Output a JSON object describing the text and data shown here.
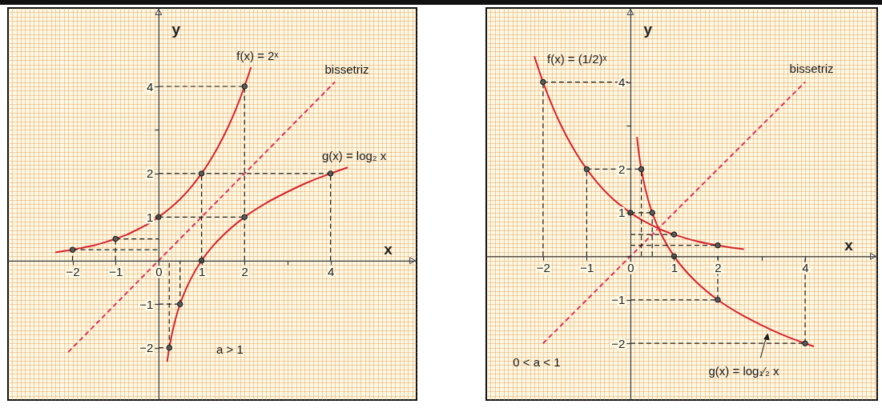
{
  "chart_data": [
    {
      "type": "line",
      "xlabel": "x",
      "ylabel": "y",
      "xlim": [
        -3.5,
        6.0
      ],
      "ylim": [
        -3.2,
        5.8
      ],
      "grid": true,
      "xticks": [
        {
          "value": -3.4,
          "label": null
        },
        {
          "value": -3.3,
          "label": null
        },
        {
          "value": -3.2,
          "label": null
        },
        {
          "value": -3.1,
          "label": null
        },
        {
          "value": -3,
          "label": null
        },
        {
          "value": -2.9,
          "label": null
        },
        {
          "value": -2.8,
          "label": null
        },
        {
          "value": -2.7,
          "label": null
        },
        {
          "value": -2.6,
          "label": null
        },
        {
          "value": -2.5,
          "label": null
        },
        {
          "value": -2.4,
          "label": null
        },
        {
          "value": -2.3,
          "label": null
        },
        {
          "value": -2.2,
          "label": null
        },
        {
          "value": -2.1,
          "label": null
        },
        -2,
        {
          "value": -1.9,
          "label": null
        },
        {
          "value": -1.8,
          "label": null
        },
        {
          "value": -1.7,
          "label": null
        },
        {
          "value": -1.6,
          "label": null
        },
        {
          "value": -1.5,
          "label": null
        },
        {
          "value": -1.4,
          "label": null
        },
        {
          "value": -1.3,
          "label": null
        },
        {
          "value": -1.2,
          "label": null
        },
        {
          "value": -1.1,
          "label": null
        },
        -1,
        {
          "value": -0.9,
          "label": null
        },
        {
          "value": -0.8,
          "label": null
        },
        {
          "value": -0.7,
          "label": null
        },
        {
          "value": -0.6,
          "label": null
        },
        {
          "value": -0.5,
          "label": null
        },
        {
          "value": -0.4,
          "label": null
        },
        {
          "value": -0.3,
          "label": null
        },
        {
          "value": -0.2,
          "label": null
        },
        {
          "value": -0.1,
          "label": null
        },
        0,
        {
          "value": 0.1,
          "label": null
        },
        {
          "value": 0.2,
          "label": null
        },
        {
          "value": 0.3,
          "label": null
        },
        {
          "value": 0.4,
          "label": null
        },
        {
          "value": 0.5,
          "label": null
        },
        {
          "value": 0.6,
          "label": null
        },
        {
          "value": 0.7,
          "label": null
        },
        {
          "value": 0.8,
          "label": null
        },
        {
          "value": 0.9,
          "label": null
        },
        1,
        {
          "value": 1.1,
          "label": null
        },
        {
          "value": 1.2,
          "label": null
        },
        {
          "value": 1.3,
          "label": null
        },
        {
          "value": 1.4,
          "label": null
        },
        {
          "value": 1.5,
          "label": null
        },
        {
          "value": 1.6,
          "label": null
        },
        {
          "value": 1.7,
          "label": null
        },
        {
          "value": 1.8,
          "label": null
        },
        {
          "value": 1.9,
          "label": null
        },
        2,
        {
          "value": 2.1,
          "label": null
        },
        {
          "value": 2.2,
          "label": null
        },
        {
          "value": 2.3,
          "label": null
        },
        {
          "value": 2.4,
          "label": null
        },
        {
          "value": 2.5,
          "label": null
        },
        {
          "value": 2.6,
          "label": null
        },
        {
          "value": 2.7,
          "label": null
        },
        {
          "value": 2.8,
          "label": null
        },
        {
          "value": 2.9,
          "label": null
        },
        {
          "value": 3,
          "label": null
        },
        {
          "value": 3.1,
          "label": null
        },
        {
          "value": 3.2,
          "label": null
        },
        {
          "value": 3.3,
          "label": null
        },
        {
          "value": 3.4,
          "label": null
        },
        {
          "value": 3.5,
          "label": null
        },
        {
          "value": 3.6,
          "label": null
        },
        {
          "value": 3.7,
          "label": null
        },
        {
          "value": 3.8,
          "label": null
        },
        {
          "value": 3.9,
          "label": null
        },
        4,
        {
          "value": 4.1,
          "label": null
        },
        {
          "value": 4.2,
          "label": null
        },
        {
          "value": 4.3,
          "label": null
        },
        {
          "value": 4.4,
          "label": null
        },
        {
          "value": 4.5,
          "label": null
        },
        {
          "value": 4.6,
          "label": null
        },
        {
          "value": 4.7,
          "label": null
        },
        {
          "value": 4.8,
          "label": null
        },
        {
          "value": 4.9,
          "label": null
        },
        {
          "value": 5,
          "label": null
        },
        {
          "value": 5.1,
          "label": null
        },
        {
          "value": 5.2,
          "label": null
        },
        {
          "value": 5.3,
          "label": null
        },
        {
          "value": 5.4,
          "label": null
        },
        {
          "value": 5.5,
          "label": null
        },
        {
          "value": 5.6,
          "label": null
        },
        {
          "value": 5.7,
          "label": null
        },
        {
          "value": 5.8,
          "label": null
        },
        {
          "value": 5.9,
          "label": null
        }
      ],
      "yticks": [
        {
          "value": -3.1,
          "label": null
        },
        {
          "value": -3,
          "label": null
        },
        {
          "value": -2.9,
          "label": null
        },
        {
          "value": -2.8,
          "label": null
        },
        {
          "value": -2.7,
          "label": null
        },
        {
          "value": -2.6,
          "label": null
        },
        {
          "value": -2.5,
          "label": null
        },
        {
          "value": -2.4,
          "label": null
        },
        {
          "value": -2.3,
          "label": null
        },
        {
          "value": -2.2,
          "label": null
        },
        {
          "value": -2.1,
          "label": null
        },
        -2,
        {
          "value": -1.9,
          "label": null
        },
        {
          "value": -1.8,
          "label": null
        },
        {
          "value": -1.7,
          "label": null
        },
        {
          "value": -1.6,
          "label": null
        },
        {
          "value": -1.5,
          "label": null
        },
        {
          "value": -1.4,
          "label": null
        },
        {
          "value": -1.3,
          "label": null
        },
        {
          "value": -1.2,
          "label": null
        },
        {
          "value": -1.1,
          "label": null
        },
        -1,
        {
          "value": -0.9,
          "label": null
        },
        {
          "value": -0.8,
          "label": null
        },
        {
          "value": -0.7,
          "label": null
        },
        {
          "value": -0.6,
          "label": null
        },
        {
          "value": -0.5,
          "label": null
        },
        {
          "value": -0.4,
          "label": null
        },
        {
          "value": -0.3,
          "label": null
        },
        {
          "value": -0.2,
          "label": null
        },
        {
          "value": -0.1,
          "label": null
        },
        {
          "value": 0,
          "label": null
        },
        {
          "value": 0.1,
          "label": null
        },
        {
          "value": 0.2,
          "label": null
        },
        {
          "value": 0.3,
          "label": null
        },
        {
          "value": 0.4,
          "label": null
        },
        {
          "value": 0.5,
          "label": null
        },
        {
          "value": 0.6,
          "label": null
        },
        {
          "value": 0.7,
          "label": null
        },
        {
          "value": 0.8,
          "label": null
        },
        {
          "value": 0.9,
          "label": null
        },
        1,
        {
          "value": 1.1,
          "label": null
        },
        {
          "value": 1.2,
          "label": null
        },
        {
          "value": 1.3,
          "label": null
        },
        {
          "value": 1.4,
          "label": null
        },
        {
          "value": 1.5,
          "label": null
        },
        {
          "value": 1.6,
          "label": null
        },
        {
          "value": 1.7,
          "label": null
        },
        {
          "value": 1.8,
          "label": null
        },
        {
          "value": 1.9,
          "label": null
        },
        2,
        {
          "value": 2.1,
          "label": null
        },
        {
          "value": 2.2,
          "label": null
        },
        {
          "value": 2.3,
          "label": null
        },
        {
          "value": 2.4,
          "label": null
        },
        {
          "value": 2.5,
          "label": null
        },
        {
          "value": 2.6,
          "label": null
        },
        {
          "value": 2.7,
          "label": null
        },
        {
          "value": 2.8,
          "label": null
        },
        {
          "value": 2.9,
          "label": null
        },
        {
          "value": 3,
          "label": null
        },
        {
          "value": 3.1,
          "label": null
        },
        {
          "value": 3.2,
          "label": null
        },
        {
          "value": 3.3,
          "label": null
        },
        {
          "value": 3.4,
          "label": null
        },
        {
          "value": 3.5,
          "label": null
        },
        {
          "value": 3.6,
          "label": null
        },
        {
          "value": 3.7,
          "label": null
        },
        {
          "value": 3.8,
          "label": null
        },
        {
          "value": 3.9,
          "label": null
        },
        4,
        {
          "value": 4.1,
          "label": null
        },
        {
          "value": 4.2,
          "label": null
        },
        {
          "value": 4.3,
          "label": null
        },
        {
          "value": 4.4,
          "label": null
        },
        {
          "value": 4.5,
          "label": null
        },
        {
          "value": 4.6,
          "label": null
        },
        {
          "value": 4.7,
          "label": null
        },
        {
          "value": 4.8,
          "label": null
        },
        {
          "value": 4.9,
          "label": null
        },
        {
          "value": 5,
          "label": null
        },
        {
          "value": 5.1,
          "label": null
        },
        {
          "value": 5.2,
          "label": null
        },
        {
          "value": 5.3,
          "label": null
        },
        {
          "value": 5.4,
          "label": null
        },
        {
          "value": 5.5,
          "label": null
        },
        {
          "value": 5.6,
          "label": null
        },
        {
          "value": 5.7,
          "label": null
        }
      ],
      "series": [
        {
          "name": "f(x) = 2ˣ",
          "color": "#d7242c",
          "x": [
            -2.4,
            -2.2,
            -2,
            -1.75,
            -1.5,
            -1.25,
            -1,
            -0.75,
            -0.5,
            -0.25,
            0,
            0.25,
            0.5,
            0.75,
            1,
            1.25,
            1.5,
            1.75,
            2,
            2.15
          ],
          "values": [
            0.19,
            0.22,
            0.25,
            0.3,
            0.35,
            0.42,
            0.5,
            0.59,
            0.71,
            0.84,
            1,
            1.19,
            1.41,
            1.68,
            2,
            2.38,
            2.83,
            3.36,
            4,
            4.44
          ]
        },
        {
          "name": "g(x) = log₂ x",
          "color": "#d7242c",
          "x": [
            0.2,
            0.25,
            0.3,
            0.4,
            0.5,
            0.6,
            0.75,
            1,
            1.25,
            1.5,
            2,
            2.5,
            3,
            3.5,
            4,
            4.4
          ],
          "values": [
            -2.32,
            -2,
            -1.74,
            -1.32,
            -1,
            -0.74,
            -0.42,
            0,
            0.32,
            0.58,
            1,
            1.32,
            1.58,
            1.81,
            2,
            2.14
          ]
        },
        {
          "name": "bissetriz",
          "color": "#d8365e",
          "line_style": "dashed",
          "x": [
            -2.1,
            4.1
          ],
          "values": [
            -2.1,
            4.1
          ]
        },
        {
          "color": "#1f1f1f",
          "line_style": "dashed",
          "x": [
            -2,
            0
          ],
          "values": [
            0.25,
            0.25
          ]
        },
        {
          "color": "#1f1f1f",
          "line_style": "dashed",
          "x": [
            -1,
            0
          ],
          "values": [
            0.5,
            0.5
          ]
        },
        {
          "color": "#1f1f1f",
          "line_style": "dashed",
          "x": [
            0,
            2
          ],
          "values": [
            1,
            1
          ]
        },
        {
          "color": "#1f1f1f",
          "line_style": "dashed",
          "x": [
            0,
            4
          ],
          "values": [
            2,
            2
          ]
        },
        {
          "color": "#1f1f1f",
          "line_style": "dashed",
          "x": [
            0,
            2
          ],
          "values": [
            4,
            4
          ]
        },
        {
          "color": "#1f1f1f",
          "line_style": "dashed",
          "x": [
            0,
            0.5
          ],
          "values": [
            -1,
            -1
          ]
        },
        {
          "color": "#1f1f1f",
          "line_style": "dashed",
          "x": [
            0,
            0.25
          ],
          "values": [
            -2,
            -2
          ]
        },
        {
          "color": "#1f1f1f",
          "line_style": "dashed",
          "x": [
            -2,
            -2
          ],
          "values": [
            0,
            0.25
          ]
        },
        {
          "color": "#1f1f1f",
          "line_style": "dashed",
          "x": [
            -1,
            -1
          ],
          "values": [
            0,
            0.5
          ]
        },
        {
          "color": "#1f1f1f",
          "line_style": "dashed",
          "x": [
            1,
            1
          ],
          "values": [
            0,
            2
          ]
        },
        {
          "color": "#1f1f1f",
          "line_style": "dashed",
          "x": [
            2,
            2
          ],
          "values": [
            0,
            4
          ]
        },
        {
          "color": "#1f1f1f",
          "line_style": "dashed",
          "x": [
            4,
            4
          ],
          "values": [
            0,
            2
          ]
        },
        {
          "color": "#1f1f1f",
          "line_style": "dashed",
          "x": [
            0.5,
            0.5
          ],
          "values": [
            -1,
            0
          ]
        },
        {
          "color": "#1f1f1f",
          "line_style": "dashed",
          "x": [
            0.25,
            0.25
          ],
          "values": [
            -2,
            0
          ]
        },
        {
          "type": "scatter",
          "color": "#5a5a5a",
          "marker": "circle",
          "x": [
            -2,
            -1,
            0,
            1,
            2,
            0.25,
            0.5,
            1,
            2,
            4
          ],
          "values": [
            0.25,
            0.5,
            1,
            2,
            4,
            -2,
            -1,
            0,
            1,
            2
          ]
        }
      ],
      "annotations": [
        "a > 1"
      ]
    },
    {
      "type": "line",
      "xlabel": "x",
      "ylabel": "y",
      "xlim": [
        -3.3,
        5.65
      ],
      "ylim": [
        -3.3,
        5.7
      ],
      "grid": true,
      "xticks": [
        {
          "value": -3.2,
          "label": null
        },
        {
          "value": -3.1,
          "label": null
        },
        {
          "value": -3,
          "label": null
        },
        {
          "value": -2.9,
          "label": null
        },
        {
          "value": -2.8,
          "label": null
        },
        {
          "value": -2.7,
          "label": null
        },
        {
          "value": -2.6,
          "label": null
        },
        {
          "value": -2.5,
          "label": null
        },
        {
          "value": -2.4,
          "label": null
        },
        {
          "value": -2.3,
          "label": null
        },
        {
          "value": -2.2,
          "label": null
        },
        {
          "value": -2.1,
          "label": null
        },
        -2,
        {
          "value": -1.9,
          "label": null
        },
        {
          "value": -1.8,
          "label": null
        },
        {
          "value": -1.7,
          "label": null
        },
        {
          "value": -1.6,
          "label": null
        },
        {
          "value": -1.5,
          "label": null
        },
        {
          "value": -1.4,
          "label": null
        },
        {
          "value": -1.3,
          "label": null
        },
        {
          "value": -1.2,
          "label": null
        },
        {
          "value": -1.1,
          "label": null
        },
        -1,
        {
          "value": -0.9,
          "label": null
        },
        {
          "value": -0.8,
          "label": null
        },
        {
          "value": -0.7,
          "label": null
        },
        {
          "value": -0.6,
          "label": null
        },
        {
          "value": -0.5,
          "label": null
        },
        {
          "value": -0.4,
          "label": null
        },
        {
          "value": -0.3,
          "label": null
        },
        {
          "value": -0.2,
          "label": null
        },
        {
          "value": -0.1,
          "label": null
        },
        0,
        {
          "value": 0.1,
          "label": null
        },
        {
          "value": 0.2,
          "label": null
        },
        {
          "value": 0.3,
          "label": null
        },
        {
          "value": 0.4,
          "label": null
        },
        {
          "value": 0.5,
          "label": null
        },
        {
          "value": 0.6,
          "label": null
        },
        {
          "value": 0.7,
          "label": null
        },
        {
          "value": 0.8,
          "label": null
        },
        {
          "value": 0.9,
          "label": null
        },
        1,
        {
          "value": 1.1,
          "label": null
        },
        {
          "value": 1.2,
          "label": null
        },
        {
          "value": 1.3,
          "label": null
        },
        {
          "value": 1.4,
          "label": null
        },
        {
          "value": 1.5,
          "label": null
        },
        {
          "value": 1.6,
          "label": null
        },
        {
          "value": 1.7,
          "label": null
        },
        {
          "value": 1.8,
          "label": null
        },
        {
          "value": 1.9,
          "label": null
        },
        2,
        {
          "value": 2.1,
          "label": null
        },
        {
          "value": 2.2,
          "label": null
        },
        {
          "value": 2.3,
          "label": null
        },
        {
          "value": 2.4,
          "label": null
        },
        {
          "value": 2.5,
          "label": null
        },
        {
          "value": 2.6,
          "label": null
        },
        {
          "value": 2.7,
          "label": null
        },
        {
          "value": 2.8,
          "label": null
        },
        {
          "value": 2.9,
          "label": null
        },
        {
          "value": 3,
          "label": null
        },
        {
          "value": 3.1,
          "label": null
        },
        {
          "value": 3.2,
          "label": null
        },
        {
          "value": 3.3,
          "label": null
        },
        {
          "value": 3.4,
          "label": null
        },
        {
          "value": 3.5,
          "label": null
        },
        {
          "value": 3.6,
          "label": null
        },
        {
          "value": 3.7,
          "label": null
        },
        {
          "value": 3.8,
          "label": null
        },
        {
          "value": 3.9,
          "label": null
        },
        4,
        {
          "value": 4.1,
          "label": null
        },
        {
          "value": 4.2,
          "label": null
        },
        {
          "value": 4.3,
          "label": null
        },
        {
          "value": 4.4,
          "label": null
        },
        {
          "value": 4.5,
          "label": null
        },
        {
          "value": 4.6,
          "label": null
        },
        {
          "value": 4.7,
          "label": null
        },
        {
          "value": 4.8,
          "label": null
        },
        {
          "value": 4.9,
          "label": null
        },
        {
          "value": 5,
          "label": null
        },
        {
          "value": 5.1,
          "label": null
        },
        {
          "value": 5.2,
          "label": null
        },
        {
          "value": 5.3,
          "label": null
        },
        {
          "value": 5.4,
          "label": null
        },
        {
          "value": 5.5,
          "label": null
        },
        {
          "value": 5.6,
          "label": null
        }
      ],
      "yticks": [
        {
          "value": -3.2,
          "label": null
        },
        {
          "value": -3.1,
          "label": null
        },
        {
          "value": -3,
          "label": null
        },
        {
          "value": -2.9,
          "label": null
        },
        {
          "value": -2.8,
          "label": null
        },
        {
          "value": -2.7,
          "label": null
        },
        {
          "value": -2.6,
          "label": null
        },
        {
          "value": -2.5,
          "label": null
        },
        {
          "value": -2.4,
          "label": null
        },
        {
          "value": -2.3,
          "label": null
        },
        {
          "value": -2.2,
          "label": null
        },
        {
          "value": -2.1,
          "label": null
        },
        -2,
        {
          "value": -1.9,
          "label": null
        },
        {
          "value": -1.8,
          "label": null
        },
        {
          "value": -1.7,
          "label": null
        },
        {
          "value": -1.6,
          "label": null
        },
        {
          "value": -1.5,
          "label": null
        },
        {
          "value": -1.4,
          "label": null
        },
        {
          "value": -1.3,
          "label": null
        },
        {
          "value": -1.2,
          "label": null
        },
        {
          "value": -1.1,
          "label": null
        },
        -1,
        {
          "value": -0.9,
          "label": null
        },
        {
          "value": -0.8,
          "label": null
        },
        {
          "value": -0.7,
          "label": null
        },
        {
          "value": -0.6,
          "label": null
        },
        {
          "value": -0.5,
          "label": null
        },
        {
          "value": -0.4,
          "label": null
        },
        {
          "value": -0.3,
          "label": null
        },
        {
          "value": -0.2,
          "label": null
        },
        {
          "value": -0.1,
          "label": null
        },
        {
          "value": 0,
          "label": null
        },
        {
          "value": 0.1,
          "label": null
        },
        {
          "value": 0.2,
          "label": null
        },
        {
          "value": 0.3,
          "label": null
        },
        {
          "value": 0.4,
          "label": null
        },
        {
          "value": 0.5,
          "label": null
        },
        {
          "value": 0.6,
          "label": null
        },
        {
          "value": 0.7,
          "label": null
        },
        {
          "value": 0.8,
          "label": null
        },
        {
          "value": 0.9,
          "label": null
        },
        1,
        {
          "value": 1.1,
          "label": null
        },
        {
          "value": 1.2,
          "label": null
        },
        {
          "value": 1.3,
          "label": null
        },
        {
          "value": 1.4,
          "label": null
        },
        {
          "value": 1.5,
          "label": null
        },
        {
          "value": 1.6,
          "label": null
        },
        {
          "value": 1.7,
          "label": null
        },
        {
          "value": 1.8,
          "label": null
        },
        {
          "value": 1.9,
          "label": null
        },
        2,
        {
          "value": 2.1,
          "label": null
        },
        {
          "value": 2.2,
          "label": null
        },
        {
          "value": 2.3,
          "label": null
        },
        {
          "value": 2.4,
          "label": null
        },
        {
          "value": 2.5,
          "label": null
        },
        {
          "value": 2.6,
          "label": null
        },
        {
          "value": 2.7,
          "label": null
        },
        {
          "value": 2.8,
          "label": null
        },
        {
          "value": 2.9,
          "label": null
        },
        {
          "value": 3,
          "label": null
        },
        {
          "value": 3.1,
          "label": null
        },
        {
          "value": 3.2,
          "label": null
        },
        {
          "value": 3.3,
          "label": null
        },
        {
          "value": 3.4,
          "label": null
        },
        {
          "value": 3.5,
          "label": null
        },
        {
          "value": 3.6,
          "label": null
        },
        {
          "value": 3.7,
          "label": null
        },
        {
          "value": 3.8,
          "label": null
        },
        {
          "value": 3.9,
          "label": null
        },
        4,
        {
          "value": 4.1,
          "label": null
        },
        {
          "value": 4.2,
          "label": null
        },
        {
          "value": 4.3,
          "label": null
        },
        {
          "value": 4.4,
          "label": null
        },
        {
          "value": 4.5,
          "label": null
        },
        {
          "value": 4.6,
          "label": null
        },
        {
          "value": 4.7,
          "label": null
        },
        {
          "value": 4.8,
          "label": null
        },
        {
          "value": 4.9,
          "label": null
        },
        {
          "value": 5,
          "label": null
        },
        {
          "value": 5.1,
          "label": null
        },
        {
          "value": 5.2,
          "label": null
        },
        {
          "value": 5.3,
          "label": null
        },
        {
          "value": 5.4,
          "label": null
        },
        {
          "value": 5.5,
          "label": null
        },
        {
          "value": 5.6,
          "label": null
        }
      ],
      "series": [
        {
          "name": "f(x) = (1/2)ˣ",
          "color": "#d7242c",
          "x": [
            -2.2,
            -2,
            -1.75,
            -1.5,
            -1.25,
            -1,
            -0.75,
            -0.5,
            -0.25,
            0,
            0.25,
            0.5,
            0.75,
            1,
            1.5,
            2,
            2.6
          ],
          "values": [
            4.59,
            4,
            3.36,
            2.83,
            2.38,
            2,
            1.68,
            1.41,
            1.19,
            1,
            0.84,
            0.71,
            0.59,
            0.5,
            0.35,
            0.25,
            0.16
          ]
        },
        {
          "name": "g(x) = log₁⁄₂ x",
          "color": "#d7242c",
          "x": [
            0.15,
            0.2,
            0.25,
            0.3,
            0.4,
            0.5,
            0.6,
            0.75,
            1,
            1.25,
            1.5,
            2,
            2.5,
            3,
            3.5,
            4,
            4.2
          ],
          "values": [
            2.74,
            2.32,
            2,
            1.74,
            1.32,
            1,
            0.74,
            0.42,
            0,
            -0.32,
            -0.58,
            -1,
            -1.32,
            -1.58,
            -1.81,
            -2,
            -2.07
          ]
        },
        {
          "name": "bissetriz",
          "color": "#d8365e",
          "line_style": "dashed",
          "x": [
            -2,
            4
          ],
          "values": [
            -2,
            4
          ]
        },
        {
          "color": "#1f1f1f",
          "line_style": "dashed",
          "x": [
            -2,
            0
          ],
          "values": [
            4,
            4
          ]
        },
        {
          "color": "#1f1f1f",
          "line_style": "dashed",
          "x": [
            -1,
            0.25
          ],
          "values": [
            2,
            2
          ]
        },
        {
          "color": "#1f1f1f",
          "line_style": "dashed",
          "x": [
            0,
            0.5
          ],
          "values": [
            1,
            1
          ]
        },
        {
          "color": "#1f1f1f",
          "line_style": "dashed",
          "x": [
            0,
            1
          ],
          "values": [
            0.5,
            0.5
          ]
        },
        {
          "color": "#1f1f1f",
          "line_style": "dashed",
          "x": [
            0,
            2
          ],
          "values": [
            0.25,
            0.25
          ]
        },
        {
          "color": "#1f1f1f",
          "line_style": "dashed",
          "x": [
            0,
            2
          ],
          "values": [
            -1,
            -1
          ]
        },
        {
          "color": "#1f1f1f",
          "line_style": "dashed",
          "x": [
            0,
            4
          ],
          "values": [
            -2,
            -2
          ]
        },
        {
          "color": "#1f1f1f",
          "line_style": "dashed",
          "x": [
            -2,
            -2
          ],
          "values": [
            0,
            4
          ]
        },
        {
          "color": "#1f1f1f",
          "line_style": "dashed",
          "x": [
            -1,
            -1
          ],
          "values": [
            0,
            2
          ]
        },
        {
          "color": "#1f1f1f",
          "line_style": "dashed",
          "x": [
            0.25,
            0.25
          ],
          "values": [
            0,
            2
          ]
        },
        {
          "color": "#1f1f1f",
          "line_style": "dashed",
          "x": [
            0.5,
            0.5
          ],
          "values": [
            0,
            1
          ]
        },
        {
          "color": "#1f1f1f",
          "line_style": "dashed",
          "x": [
            2,
            2
          ],
          "values": [
            -1,
            0
          ]
        },
        {
          "color": "#1f1f1f",
          "line_style": "dashed",
          "x": [
            4,
            4
          ],
          "values": [
            -2,
            0
          ]
        },
        {
          "type": "scatter",
          "color": "#5a5a5a",
          "marker": "circle",
          "x": [
            -2,
            -1,
            0,
            1,
            2,
            0.25,
            0.5,
            1,
            2,
            4
          ],
          "values": [
            4,
            2,
            1,
            0.5,
            0.25,
            2,
            1,
            0,
            -1,
            -2
          ]
        }
      ],
      "annotations": [
        "0 < a < 1"
      ]
    }
  ]
}
